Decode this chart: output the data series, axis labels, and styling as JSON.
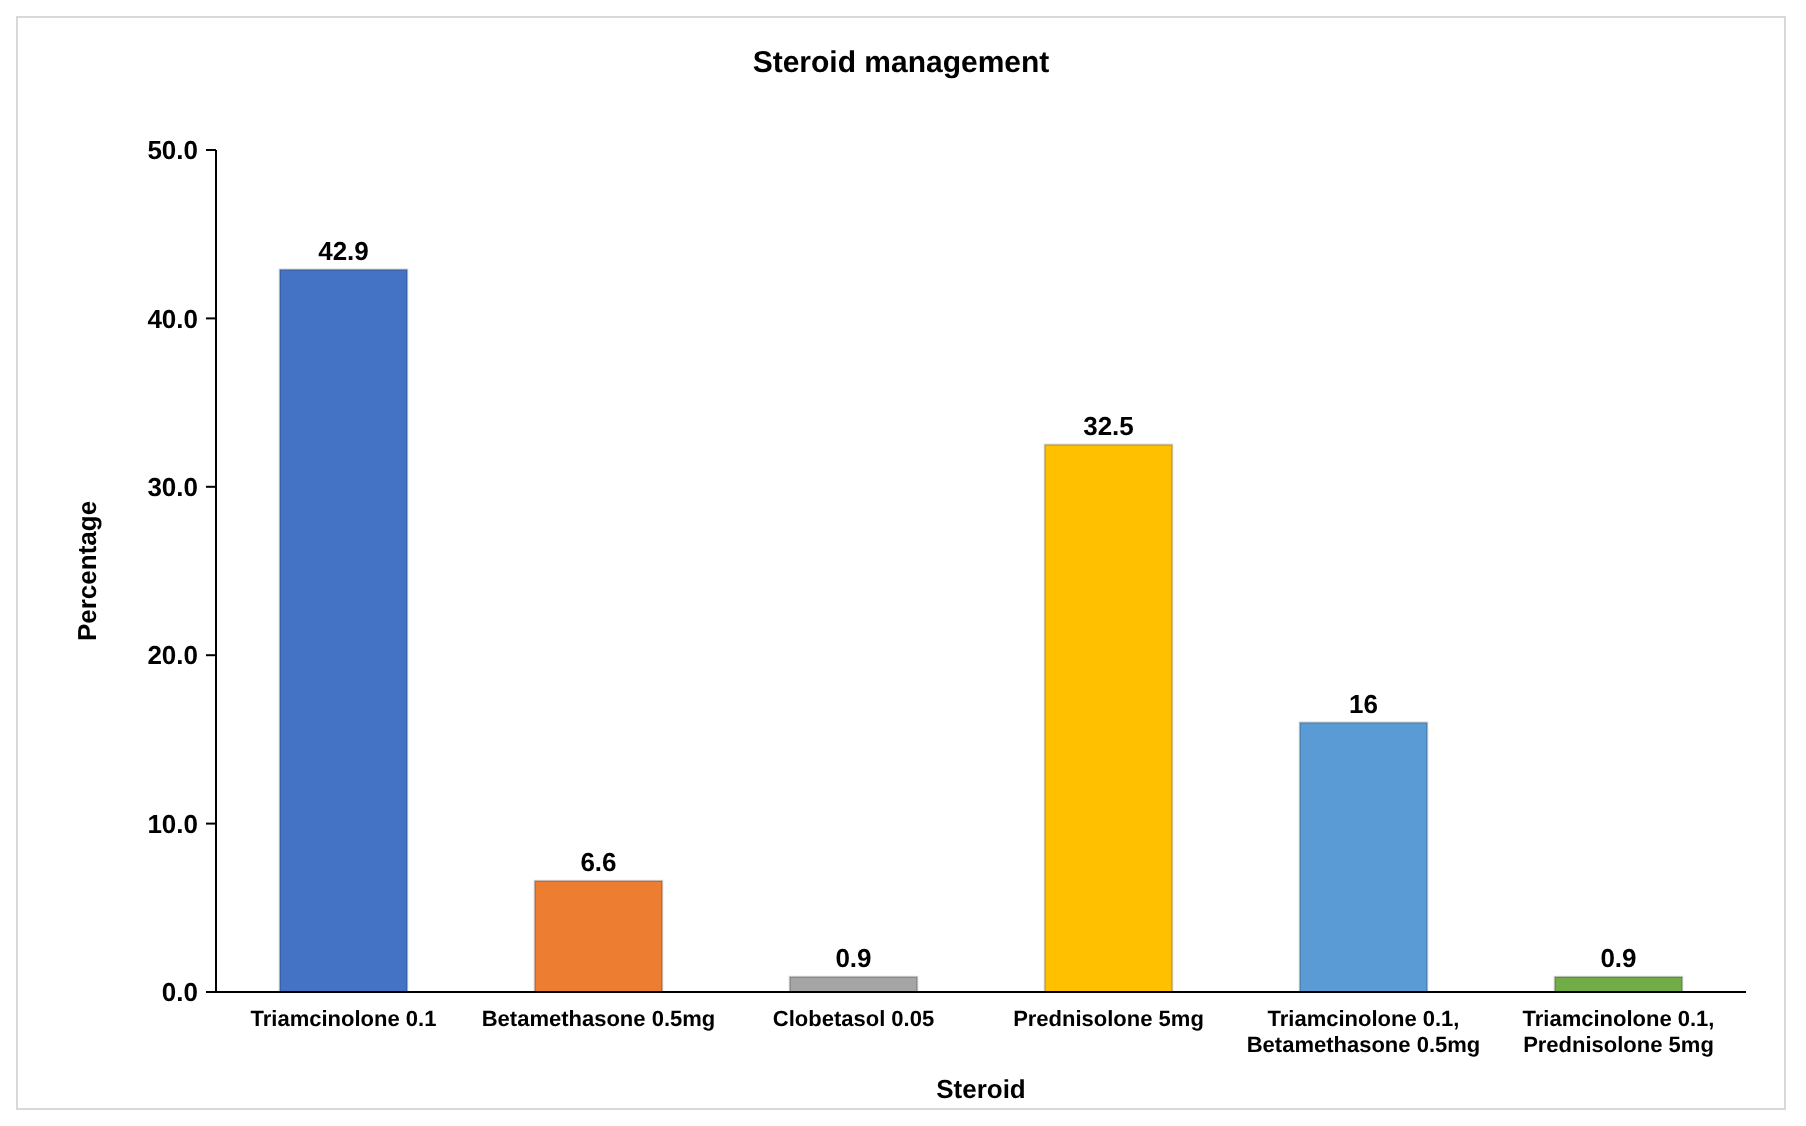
{
  "chart_data": {
    "type": "bar",
    "title": "Steroid management",
    "xlabel": "Steroid",
    "ylabel": "Percentage",
    "categories": [
      "Triamcinolone 0.1",
      "Betamethasone 0.5mg",
      "Clobetasol 0.05",
      "Prednisolone 5mg",
      "Triamcinolone 0.1, Betamethasone 0.5mg",
      "Triamcinolone 0.1, Prednisolone 5mg"
    ],
    "values": [
      42.9,
      6.6,
      0.9,
      32.5,
      16,
      0.9
    ],
    "colors": [
      "#4472c4",
      "#ed7d31",
      "#a5a5a5",
      "#ffc000",
      "#5b9bd5",
      "#70ad47"
    ],
    "ylim": [
      0,
      50
    ],
    "yticks": [
      {
        "value": 0,
        "label": "0.0"
      },
      {
        "value": 10,
        "label": "10.0"
      },
      {
        "value": 20,
        "label": "20.0"
      },
      {
        "value": 30,
        "label": "30.0"
      },
      {
        "value": 40,
        "label": "40.0"
      },
      {
        "value": 50,
        "label": "50.0"
      }
    ],
    "grid": false,
    "data_labels": true
  }
}
